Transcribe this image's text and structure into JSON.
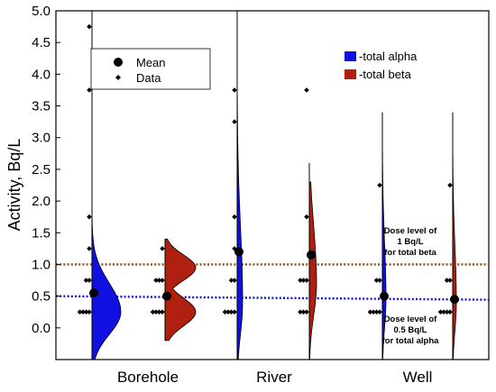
{
  "chart_data": {
    "type": "half-violin with data points",
    "ylabel": "Activity, Bq/L",
    "ylim": [
      -0.5,
      5.0
    ],
    "yticks": [
      "5.0",
      "4.5",
      "4.0",
      "3.5",
      "3.0",
      "2.5",
      "2.0",
      "1.5",
      "1.0",
      "0.5",
      "0.0"
    ],
    "categories": [
      "Borehole",
      "River",
      "Well"
    ],
    "legend_markers": [
      {
        "label": "Mean",
        "marker": "circle"
      },
      {
        "label": "Data",
        "marker": "diamond"
      }
    ],
    "legend_series": [
      {
        "label": "-total alpha",
        "color": "#1010e0"
      },
      {
        "label": "-total beta",
        "color": "#b02010"
      }
    ],
    "series": [
      {
        "name": "-total alpha",
        "color": "#1010e0",
        "groups": [
          {
            "category": "Borehole",
            "mean": 0.55,
            "data": [
              0.25,
              0.25,
              0.25,
              0.25,
              0.75,
              0.75,
              1.25,
              1.75,
              3.75,
              4.75
            ]
          },
          {
            "category": "River",
            "mean": 1.2,
            "data": [
              0.25,
              0.25,
              0.25,
              0.25,
              0.75,
              0.75,
              1.25,
              1.75,
              3.25,
              3.75
            ]
          },
          {
            "category": "Well",
            "mean": 0.5,
            "data": [
              0.25,
              0.25,
              0.25,
              0.25,
              0.75,
              0.75,
              2.25
            ]
          }
        ]
      },
      {
        "name": "-total beta",
        "color": "#b02010",
        "groups": [
          {
            "category": "Borehole",
            "mean": 0.5,
            "data": [
              0.25,
              0.25,
              0.25,
              0.25,
              0.75,
              0.75,
              0.75,
              1.25
            ]
          },
          {
            "category": "River",
            "mean": 1.15,
            "data": [
              0.25,
              0.25,
              0.25,
              0.75,
              0.75,
              0.75,
              1.75,
              3.75
            ]
          },
          {
            "category": "Well",
            "mean": 0.45,
            "data": [
              0.25,
              0.25,
              0.25,
              0.25,
              0.75,
              0.75,
              2.25
            ]
          }
        ]
      }
    ],
    "reference_lines": [
      {
        "value": 1.0,
        "color": "#8b4a10",
        "style": "dotted",
        "label_lines": [
          "Dose level of",
          "1 Bq/L",
          "for total beta"
        ]
      },
      {
        "value": 0.5,
        "color": "#1010e0",
        "style": "dotted",
        "label_lines": [
          "Dose level of",
          "0.5 Bq/L",
          "for total alpha"
        ]
      }
    ]
  }
}
